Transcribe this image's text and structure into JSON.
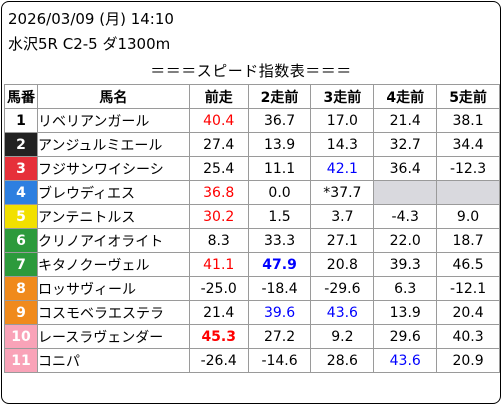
{
  "header": {
    "date_line": "2026/03/09 (月) 14:10",
    "race_line": "水沢5R C2-5 ダ1300m",
    "title": "＝＝＝スピード指数表＝＝＝"
  },
  "columns": [
    "馬番",
    "馬名",
    "前走",
    "2走前",
    "3走前",
    "4走前",
    "5走前"
  ],
  "colors": {
    "red": "#ff0000",
    "blue": "#0000ff",
    "gray_empty": "#d9d9de"
  },
  "rows": [
    {
      "num": "1",
      "frame": "w1",
      "name": "リベリアンガール",
      "cells": [
        {
          "v": "40.4",
          "c": "red"
        },
        {
          "v": "36.7"
        },
        {
          "v": "17.0"
        },
        {
          "v": "21.4"
        },
        {
          "v": "38.1"
        }
      ]
    },
    {
      "num": "2",
      "frame": "w2",
      "name": "アンジュルミエール",
      "cells": [
        {
          "v": "27.4"
        },
        {
          "v": "13.9"
        },
        {
          "v": "14.3"
        },
        {
          "v": "32.7"
        },
        {
          "v": "34.4"
        }
      ]
    },
    {
      "num": "3",
      "frame": "w3",
      "name": "フジサンワイシーシ",
      "cells": [
        {
          "v": "25.4"
        },
        {
          "v": "11.1"
        },
        {
          "v": "42.1",
          "c": "blue"
        },
        {
          "v": "36.4"
        },
        {
          "v": "-12.3"
        }
      ]
    },
    {
      "num": "4",
      "frame": "w4",
      "name": "ブレウディエス",
      "cells": [
        {
          "v": "36.8",
          "c": "red"
        },
        {
          "v": "0.0"
        },
        {
          "v": "*37.7"
        },
        {
          "v": "",
          "c": "gray"
        },
        {
          "v": "",
          "c": "gray"
        }
      ]
    },
    {
      "num": "5",
      "frame": "w5",
      "name": "アンテニトルス",
      "cells": [
        {
          "v": "30.2",
          "c": "red"
        },
        {
          "v": "1.5"
        },
        {
          "v": "3.7"
        },
        {
          "v": "-4.3"
        },
        {
          "v": "9.0"
        }
      ]
    },
    {
      "num": "6",
      "frame": "w6",
      "name": "クリノアイオライト",
      "cells": [
        {
          "v": "8.3"
        },
        {
          "v": "33.3"
        },
        {
          "v": "27.1"
        },
        {
          "v": "22.0"
        },
        {
          "v": "18.7"
        }
      ]
    },
    {
      "num": "7",
      "frame": "w6",
      "name": "キタノクーヴェル",
      "cells": [
        {
          "v": "41.1",
          "c": "red"
        },
        {
          "v": "47.9",
          "c": "blue bold"
        },
        {
          "v": "20.8"
        },
        {
          "v": "39.3"
        },
        {
          "v": "46.5"
        }
      ]
    },
    {
      "num": "8",
      "frame": "w7",
      "name": "ロッサヴィール",
      "cells": [
        {
          "v": "-25.0"
        },
        {
          "v": "-18.4"
        },
        {
          "v": "-29.6"
        },
        {
          "v": "6.3"
        },
        {
          "v": "-12.1"
        }
      ]
    },
    {
      "num": "9",
      "frame": "w7",
      "name": "コスモベラエステラ",
      "cells": [
        {
          "v": "21.4"
        },
        {
          "v": "39.6",
          "c": "blue"
        },
        {
          "v": "43.6",
          "c": "blue"
        },
        {
          "v": "13.9"
        },
        {
          "v": "20.4"
        }
      ]
    },
    {
      "num": "10",
      "frame": "w8",
      "name": "レースラヴェンダー",
      "cells": [
        {
          "v": "45.3",
          "c": "red bold"
        },
        {
          "v": "27.2"
        },
        {
          "v": "9.2"
        },
        {
          "v": "29.6"
        },
        {
          "v": "40.3"
        }
      ]
    },
    {
      "num": "11",
      "frame": "w8",
      "name": "コニパ",
      "cells": [
        {
          "v": "-26.4"
        },
        {
          "v": "-14.6"
        },
        {
          "v": "28.6"
        },
        {
          "v": "43.6",
          "c": "blue"
        },
        {
          "v": "20.9"
        }
      ]
    }
  ]
}
